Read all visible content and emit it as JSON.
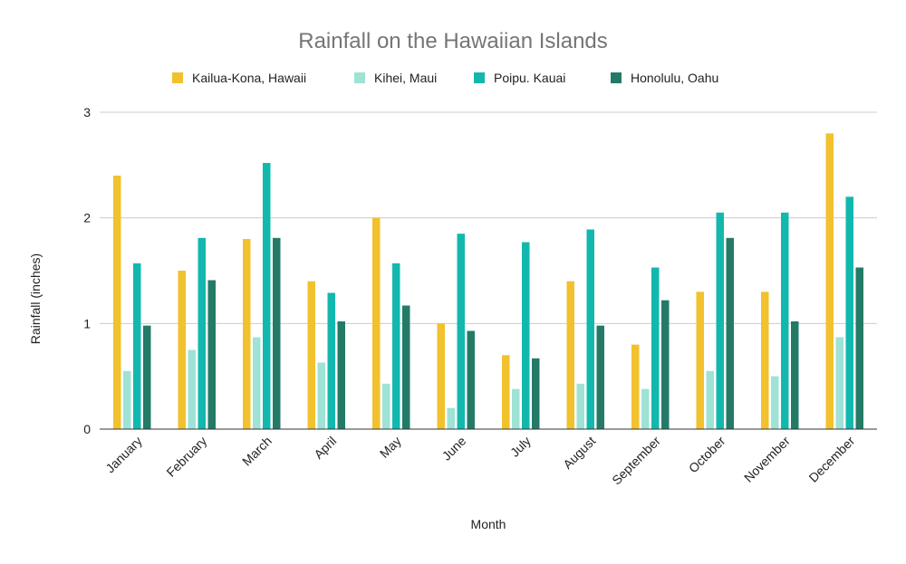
{
  "chart_data": {
    "type": "bar",
    "title": "Rainfall on the Hawaiian Islands",
    "xlabel": "Month",
    "ylabel": "Rainfall (inches)",
    "ylim": [
      0,
      3
    ],
    "yticks": [
      0,
      1,
      2,
      3
    ],
    "grid": true,
    "legend_position": "top",
    "categories": [
      "January",
      "February",
      "March",
      "April",
      "May",
      "June",
      "July",
      "August",
      "September",
      "October",
      "November",
      "December"
    ],
    "series": [
      {
        "name": "Kailua-Kona, Hawaii",
        "color": "#F2C12E",
        "values": [
          2.4,
          1.5,
          1.8,
          1.4,
          2.0,
          1.0,
          0.7,
          1.4,
          0.8,
          1.3,
          1.3,
          2.8
        ]
      },
      {
        "name": "Kihei, Maui",
        "color": "#9FE2D6",
        "values": [
          0.55,
          0.75,
          0.87,
          0.63,
          0.43,
          0.2,
          0.38,
          0.43,
          0.38,
          0.55,
          0.5,
          0.87
        ]
      },
      {
        "name": "Poipu. Kauai",
        "color": "#12B8AE",
        "values": [
          1.57,
          1.81,
          2.52,
          1.29,
          1.57,
          1.85,
          1.77,
          1.89,
          1.53,
          2.05,
          2.05,
          2.2
        ]
      },
      {
        "name": "Honolulu, Oahu",
        "color": "#237B67",
        "values": [
          0.98,
          1.41,
          1.81,
          1.02,
          1.17,
          0.93,
          0.67,
          0.98,
          1.22,
          1.81,
          1.02,
          1.53
        ]
      }
    ]
  }
}
